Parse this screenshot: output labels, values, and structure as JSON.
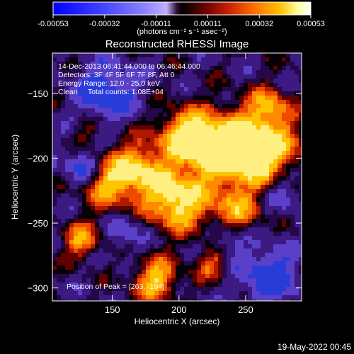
{
  "colorbar": {
    "tick_labels": [
      "-0.00053",
      "-0.00032",
      "-0.00011",
      "0.00011",
      "0.00032",
      "0.00053"
    ],
    "unit_label": "(photons cm⁻² s⁻¹ asec⁻²)",
    "colors": [
      "#0000ff",
      "#3e3eff",
      "#8080ff",
      "#b0a0ff",
      "#2a0a2a",
      "#000000",
      "#5a0000",
      "#c81e00",
      "#ff6e00",
      "#ffc000",
      "#ffff9a",
      "#ffffff"
    ]
  },
  "footer": {
    "date": "19-May-2022 00:45"
  },
  "chart_data": {
    "type": "heatmap",
    "title": "Reconstructed RHESSI Image",
    "xlabel": "Heliocentric X (arcsec)",
    "ylabel": "Heliocentric Y (arcsec)",
    "xlim": [
      105,
      292
    ],
    "ylim": [
      -310,
      -119
    ],
    "x_ticks": [
      150,
      200,
      250
    ],
    "y_ticks": [
      -150,
      -200,
      -250,
      -300
    ],
    "x_tick_labels": [
      "150",
      "200",
      "250"
    ],
    "y_tick_labels": [
      "−150",
      "−200",
      "−250",
      "−300"
    ],
    "annotations": [
      "14-Dec-2013 06:41:44.000 to 06:46:44.000",
      "Detectors: 3F 4F 5F 6F 7F 8F, Att 0",
      "Energy Range: 12.0 - 25.0 keV",
      "Clean     Total counts: 1.08E+04",
      "Position of Peak = [263, -194]"
    ],
    "peak": [
      263,
      -194
    ]
  }
}
